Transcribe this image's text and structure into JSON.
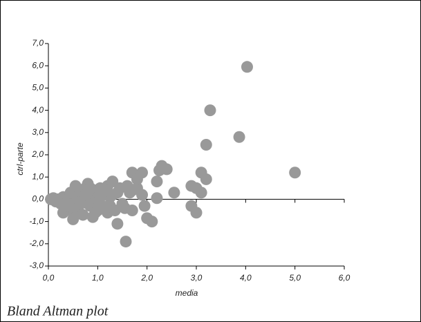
{
  "chart_data": {
    "type": "scatter",
    "title": "Bland Altman plot",
    "x_label": "media",
    "y_label": "ctrl-parte",
    "color": "#999999",
    "x": [
      0.05,
      0.1,
      0.15,
      0.2,
      0.25,
      0.3,
      0.35,
      0.4,
      0.45,
      0.5,
      0.55,
      0.6,
      0.65,
      0.7,
      0.75,
      0.8,
      0.85,
      0.9,
      0.95,
      1.0,
      1.05,
      1.1,
      1.15,
      1.2,
      1.25,
      0.3,
      0.4,
      0.5,
      0.6,
      0.7,
      0.8,
      0.9,
      1.0,
      1.1,
      1.2,
      1.3,
      0.45,
      0.55,
      0.65,
      0.75,
      0.85,
      0.95,
      1.05,
      1.15,
      1.25,
      1.35,
      1.45,
      1.55,
      1.65,
      1.4,
      1.5,
      1.6,
      1.7,
      1.8,
      1.3,
      1.4,
      1.5,
      1.57,
      1.7,
      1.8,
      1.9,
      1.95,
      2.0,
      2.1,
      2.2,
      2.25,
      2.3,
      2.4,
      2.2,
      2.55,
      2.9,
      3.0,
      3.1,
      2.9,
      3.0,
      3.1,
      3.2,
      3.2,
      3.28,
      3.87,
      4.03,
      5.0,
      1.9,
      1.7
    ],
    "values": [
      0,
      0.05,
      -0.1,
      0,
      -0.2,
      0.1,
      -0.3,
      0,
      -0.5,
      -0.2,
      0.2,
      -0.4,
      0.3,
      0,
      0.5,
      0.7,
      -0.3,
      0.2,
      0.4,
      -0.1,
      0.5,
      0.3,
      -0.4,
      0.6,
      0.1,
      -0.6,
      -0.3,
      -0.9,
      -0.5,
      -0.7,
      -0.2,
      -0.8,
      -0.5,
      -0.3,
      -0.6,
      0.2,
      0.3,
      0.6,
      -0.2,
      0.2,
      0.5,
      -0.6,
      0.1,
      0.4,
      -0.3,
      -0.5,
      0.5,
      -0.4,
      0.3,
      0.3,
      -0.2,
      0.6,
      0.4,
      0.5,
      0.8,
      -1.1,
      -0.3,
      -1.9,
      1.2,
      0.9,
      1.2,
      -0.3,
      -0.85,
      -1.0,
      0.8,
      1.3,
      1.5,
      1.35,
      0.05,
      0.3,
      0.6,
      -0.6,
      0.3,
      -0.3,
      0.5,
      1.2,
      0.9,
      2.45,
      4.0,
      2.8,
      5.95,
      1.2,
      0.2,
      -0.5
    ],
    "xlim": [
      0,
      6
    ],
    "ylim": [
      -3,
      7
    ],
    "xticks": [
      {
        "value": 0,
        "label": "0,0"
      },
      {
        "value": 1,
        "label": "1,0"
      },
      {
        "value": 2,
        "label": "2,0"
      },
      {
        "value": 3,
        "label": "3,0"
      },
      {
        "value": 4,
        "label": "4,0"
      },
      {
        "value": 5,
        "label": "5,0"
      },
      {
        "value": 6,
        "label": "6,0"
      }
    ],
    "yticks": [
      {
        "value": -3,
        "label": "-3,0"
      },
      {
        "value": -2,
        "label": "-2,0"
      },
      {
        "value": -1,
        "label": "-1,0"
      },
      {
        "value": 0,
        "label": "0,0"
      },
      {
        "value": 1,
        "label": "1,0"
      },
      {
        "value": 2,
        "label": "2,0"
      },
      {
        "value": 3,
        "label": "3,0"
      },
      {
        "value": 4,
        "label": "4,0"
      },
      {
        "value": 5,
        "label": "5,0"
      },
      {
        "value": 6,
        "label": "6,0"
      },
      {
        "value": 7,
        "label": "7,0"
      }
    ]
  }
}
